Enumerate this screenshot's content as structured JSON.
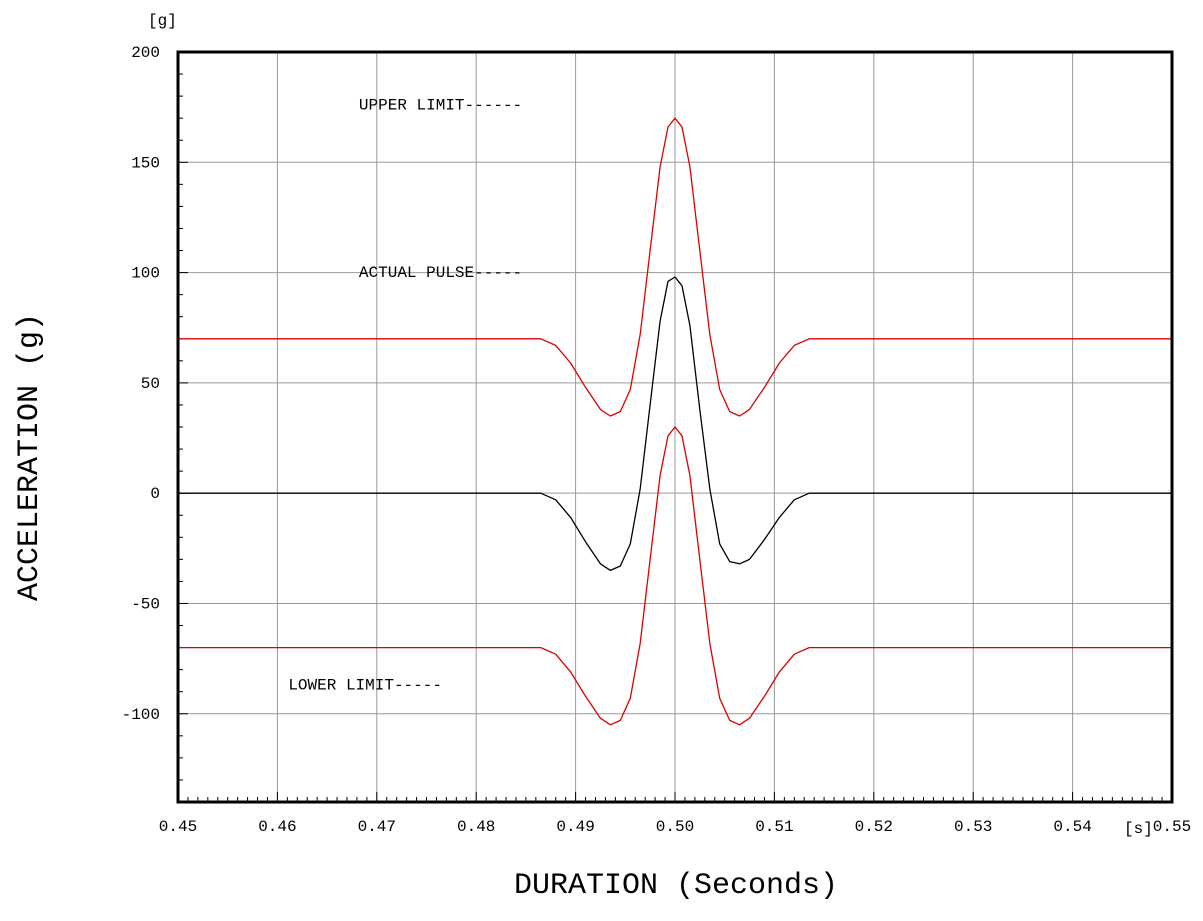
{
  "chart_data": {
    "type": "line",
    "title": "",
    "xlabel": "DURATION (Seconds)",
    "ylabel": "ACCELERATION (g)",
    "x_unit": "[s]",
    "y_unit": "[g]",
    "xlim": [
      0.45,
      0.55
    ],
    "ylim": [
      -140,
      200
    ],
    "x_ticks": [
      0.45,
      0.46,
      0.47,
      0.48,
      0.49,
      0.5,
      0.51,
      0.52,
      0.53,
      0.54,
      0.55
    ],
    "x_tick_labels": [
      "0.45",
      "0.46",
      "0.47",
      "0.48",
      "0.49",
      "0.50",
      "0.51",
      "0.52",
      "0.53",
      "0.54",
      "0.55"
    ],
    "y_ticks": [
      -100,
      -50,
      0,
      50,
      100,
      150,
      200
    ],
    "y_tick_labels": [
      "-100",
      "-50",
      "0",
      "50",
      "100",
      "150",
      "200"
    ],
    "grid": true,
    "legend": "none",
    "colors": {
      "limit": "#dd0000",
      "pulse": "#000000",
      "grid": "#999999",
      "frame": "#000000"
    },
    "series": [
      {
        "key": "upper",
        "color": "#dd0000",
        "x": [
          0.45,
          0.4865,
          0.488,
          0.4895,
          0.491,
          0.4925,
          0.4935,
          0.4945,
          0.4955,
          0.4965,
          0.4975,
          0.4985,
          0.4993,
          0.5,
          0.5007,
          0.5015,
          0.5025,
          0.5035,
          0.5045,
          0.5055,
          0.5065,
          0.5075,
          0.509,
          0.5105,
          0.512,
          0.5135,
          0.55
        ],
        "y": [
          70,
          70,
          67,
          59,
          48,
          38,
          35,
          37,
          47,
          72,
          110,
          148,
          166,
          170,
          166,
          148,
          110,
          72,
          47,
          37,
          35,
          38,
          48,
          59,
          67,
          70,
          70
        ]
      },
      {
        "key": "pulse",
        "color": "#000000",
        "x": [
          0.45,
          0.4865,
          0.488,
          0.4895,
          0.491,
          0.4925,
          0.4935,
          0.4945,
          0.4955,
          0.4965,
          0.4975,
          0.4985,
          0.4993,
          0.5,
          0.5007,
          0.5015,
          0.5025,
          0.5035,
          0.5045,
          0.5055,
          0.5065,
          0.5075,
          0.509,
          0.5105,
          0.512,
          0.5135,
          0.55
        ],
        "y": [
          0,
          0,
          -3,
          -11,
          -22,
          -32,
          -35,
          -33,
          -23,
          2,
          40,
          78,
          96,
          98,
          94,
          76,
          38,
          2,
          -23,
          -31,
          -32,
          -30,
          -21,
          -11,
          -3,
          0,
          0
        ]
      },
      {
        "key": "lower",
        "color": "#dd0000",
        "x": [
          0.45,
          0.4865,
          0.488,
          0.4895,
          0.491,
          0.4925,
          0.4935,
          0.4945,
          0.4955,
          0.4965,
          0.4975,
          0.4985,
          0.4993,
          0.5,
          0.5007,
          0.5015,
          0.5025,
          0.5035,
          0.5045,
          0.5055,
          0.5065,
          0.5075,
          0.509,
          0.5105,
          0.512,
          0.5135,
          0.55
        ],
        "y": [
          -70,
          -70,
          -73,
          -81,
          -92,
          -102,
          -105,
          -103,
          -93,
          -68,
          -30,
          8,
          26,
          30,
          26,
          8,
          -30,
          -68,
          -93,
          -103,
          -105,
          -102,
          -92,
          -81,
          -73,
          -70,
          -70
        ]
      }
    ],
    "annotations": [
      {
        "key": "upper",
        "text": "UPPER LIMIT------",
        "x": 0.4682,
        "y": 174
      },
      {
        "key": "pulse",
        "text": "ACTUAL PULSE-----",
        "x": 0.4682,
        "y": 98
      },
      {
        "key": "lower",
        "text": "LOWER LIMIT-----",
        "x": 0.4611,
        "y": -89
      }
    ]
  }
}
